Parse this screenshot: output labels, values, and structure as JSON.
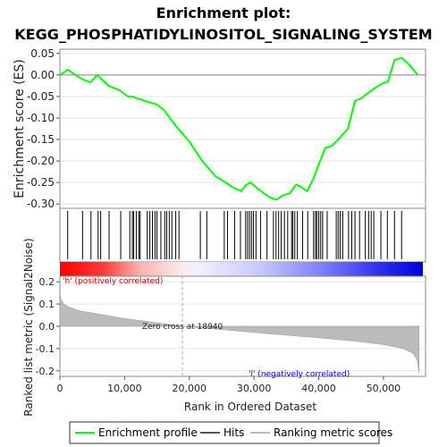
{
  "chart_data": {
    "type": "line",
    "title_line1": "Enrichment plot:",
    "title_line2": "KEGG_PHOSPHATIDYLINOSITOL_SIGNALING_SYSTEM",
    "top_panel": {
      "ylabel": "Enrichment score (ES)",
      "ylim": [
        -0.31,
        0.06
      ],
      "yticks": [
        "0.05",
        "0.00",
        "-0.05",
        "-0.10",
        "-0.15",
        "-0.20",
        "-0.25",
        "-0.30"
      ],
      "ytick_values": [
        0.05,
        0.0,
        -0.05,
        -0.1,
        -0.15,
        -0.2,
        -0.25,
        -0.3
      ],
      "series": [
        {
          "name": "Enrichment profile",
          "color": "#00ff00",
          "x": [
            0,
            1200,
            3500,
            4700,
            5800,
            7500,
            9200,
            10500,
            11200,
            12100,
            13700,
            14900,
            16000,
            18000,
            20000,
            22000,
            24000,
            25600,
            26800,
            28000,
            28800,
            29500,
            30200,
            31500,
            32500,
            33500,
            34400,
            35500,
            36500,
            37200,
            38200,
            39200,
            40200,
            41000,
            42000,
            43000,
            44500,
            45600,
            46500,
            47800,
            48700,
            49800,
            50700,
            51700,
            52800,
            53900,
            55300
          ],
          "y": [
            0.0,
            0.012,
            -0.01,
            -0.017,
            0.0,
            -0.025,
            -0.035,
            -0.05,
            -0.05,
            -0.055,
            -0.063,
            -0.068,
            -0.08,
            -0.12,
            -0.155,
            -0.2,
            -0.235,
            -0.25,
            -0.262,
            -0.27,
            -0.255,
            -0.25,
            -0.26,
            -0.275,
            -0.285,
            -0.29,
            -0.28,
            -0.275,
            -0.255,
            -0.26,
            -0.27,
            -0.24,
            -0.2,
            -0.17,
            -0.165,
            -0.15,
            -0.125,
            -0.06,
            -0.055,
            -0.04,
            -0.03,
            -0.02,
            -0.015,
            0.035,
            0.04,
            0.025,
            0.0
          ]
        }
      ]
    },
    "hits": [
      1200,
      3500,
      4800,
      5900,
      6300,
      7600,
      9400,
      10800,
      11200,
      11400,
      11800,
      12200,
      12400,
      13500,
      13900,
      14300,
      14700,
      15000,
      15600,
      16200,
      16500,
      16900,
      17300,
      17900,
      18400,
      21700,
      22700,
      25400,
      25900,
      27000,
      27900,
      28700,
      29000,
      29300,
      29600,
      29900,
      30300,
      31000,
      32000,
      33000,
      33400,
      33800,
      34200,
      34700,
      35200,
      35800,
      36000,
      36300,
      36700,
      37500,
      38300,
      39200,
      39500,
      39700,
      40000,
      40300,
      40600,
      41300,
      42700,
      43000,
      43300,
      43700,
      44600,
      45100,
      45600,
      46300,
      47200,
      47700,
      48100,
      48500,
      49600,
      50600,
      51700,
      52800
    ],
    "metric_panel": {
      "ylabel": "Ranked list metric (Signal2Noise)",
      "ylim": [
        -0.225,
        0.225
      ],
      "yticks": [
        "0.2",
        "0.1",
        "0.0",
        "-0.1",
        "-0.2"
      ],
      "ytick_values": [
        0.2,
        0.1,
        0.0,
        -0.1,
        -0.2
      ],
      "zero_cross_label": "Zero cross at 18940",
      "zero_cross_x": 18940,
      "positive_label": "'h' (positively correlated)",
      "negative_label": "'l' (negatively correlated)",
      "profile_x": [
        0,
        200,
        600,
        1500,
        3000,
        6000,
        10000,
        14000,
        18940,
        25000,
        32000,
        40000,
        46000,
        50000,
        53000,
        54500,
        55200,
        55500
      ],
      "profile_y": [
        0.15,
        0.12,
        0.1,
        0.085,
        0.07,
        0.055,
        0.035,
        0.02,
        0.0,
        -0.015,
        -0.033,
        -0.052,
        -0.068,
        -0.082,
        -0.1,
        -0.12,
        -0.15,
        -0.21
      ]
    },
    "xaxis": {
      "xlabel": "Rank in Ordered Dataset",
      "xlim": [
        0,
        56500
      ],
      "xticks": [
        "0",
        "10,000",
        "20,000",
        "30,000",
        "40,000",
        "50,000"
      ],
      "xtick_values": [
        0,
        10000,
        20000,
        30000,
        40000,
        50000
      ]
    },
    "legend": {
      "items": [
        "Enrichment profile",
        "Hits",
        "Ranking metric scores"
      ],
      "placement": "bottom"
    },
    "colors": {
      "profile": "#00ff00",
      "hits": "#000000",
      "metric_fill": "#bbbbbb",
      "positive_text": "#cc0000",
      "negative_text": "#0000cc",
      "heat_red": "#ff0000",
      "heat_blue": "#0000ff"
    }
  }
}
